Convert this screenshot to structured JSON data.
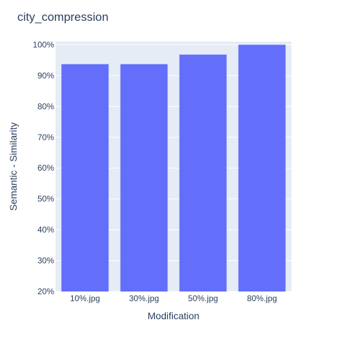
{
  "chart_data": {
    "type": "bar",
    "title": "city_compression",
    "xlabel": "Modification",
    "ylabel": "Semantic - Similarity",
    "categories": [
      "10%.jpg",
      "30%.jpg",
      "50%.jpg",
      "80%.jpg"
    ],
    "values": [
      0.937,
      0.937,
      0.968,
      1.0
    ],
    "ylim": [
      0.2,
      1.01
    ],
    "yticks": [
      0.2,
      0.3,
      0.4,
      0.5,
      0.6,
      0.7,
      0.8,
      0.9,
      1.0
    ],
    "ytick_labels": [
      "20%",
      "30%",
      "40%",
      "50%",
      "60%",
      "70%",
      "80%",
      "90%",
      "100%"
    ],
    "grid": true,
    "legend": "none",
    "colors": {
      "bar": "#636efa",
      "plot_background": "#e5ecf6",
      "gridline": "#ffffff",
      "text": "#2a3f5f",
      "page_background": "#ffffff"
    }
  }
}
